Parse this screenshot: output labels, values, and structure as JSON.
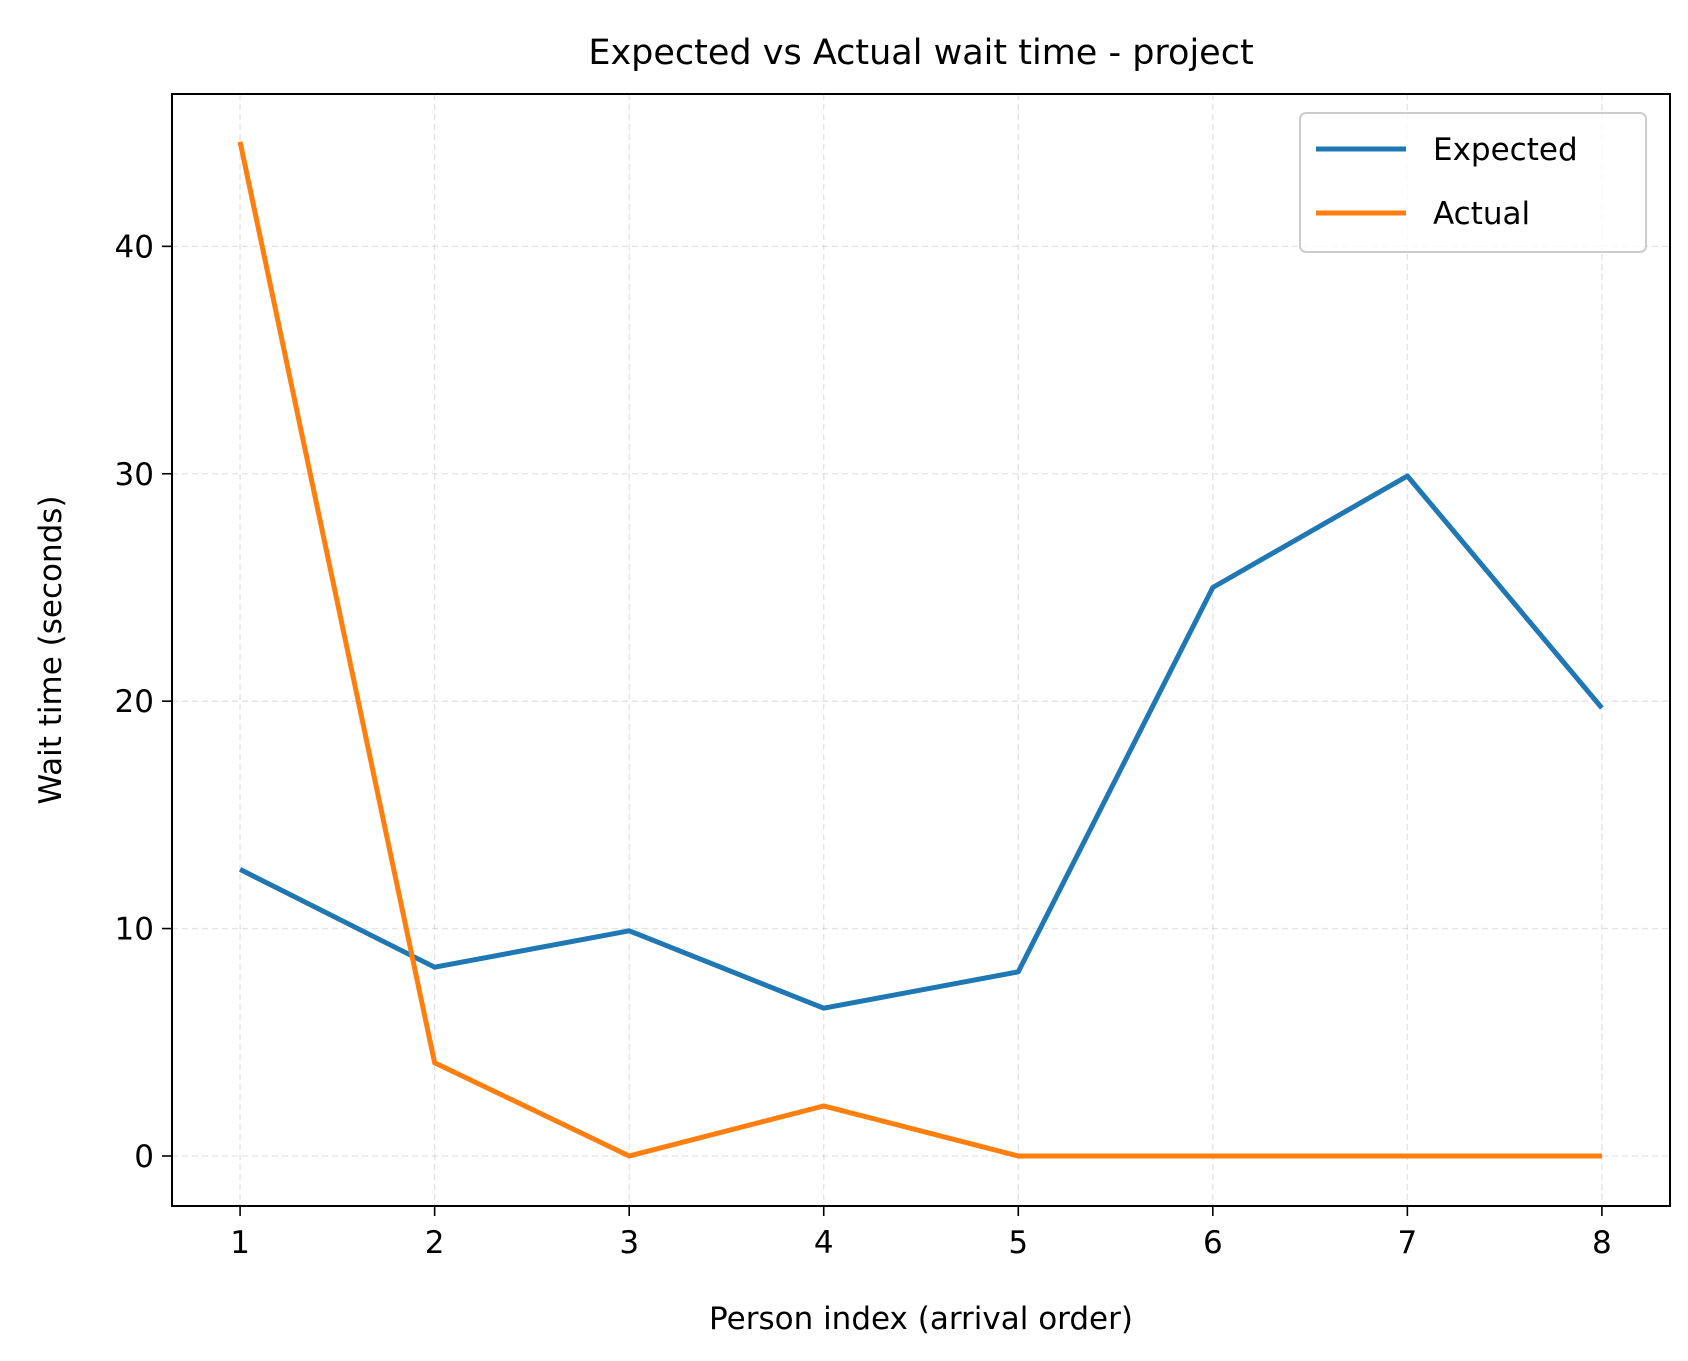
{
  "chart_data": {
    "type": "line",
    "title": "Expected vs Actual wait time - project",
    "xlabel": "Person index (arrival order)",
    "ylabel": "Wait time (seconds)",
    "x": [
      1,
      2,
      3,
      4,
      5,
      6,
      7,
      8
    ],
    "xlim": [
      0.65,
      8.35
    ],
    "ylim": [
      -2.2,
      46.7
    ],
    "xticks": [
      "1",
      "2",
      "3",
      "4",
      "5",
      "6",
      "7",
      "8"
    ],
    "yticks": [
      "0",
      "10",
      "20",
      "30",
      "40"
    ],
    "grid": true,
    "legend_position": "top-right",
    "series": [
      {
        "name": "Expected",
        "color": "#1f77b4",
        "values": [
          12.6,
          8.3,
          9.9,
          6.5,
          8.1,
          25.0,
          29.9,
          19.7
        ]
      },
      {
        "name": "Actual",
        "color": "#ff7f0e",
        "values": [
          44.6,
          4.1,
          0.0,
          2.2,
          0.0,
          0.0,
          0.0,
          0.0
        ]
      }
    ]
  }
}
